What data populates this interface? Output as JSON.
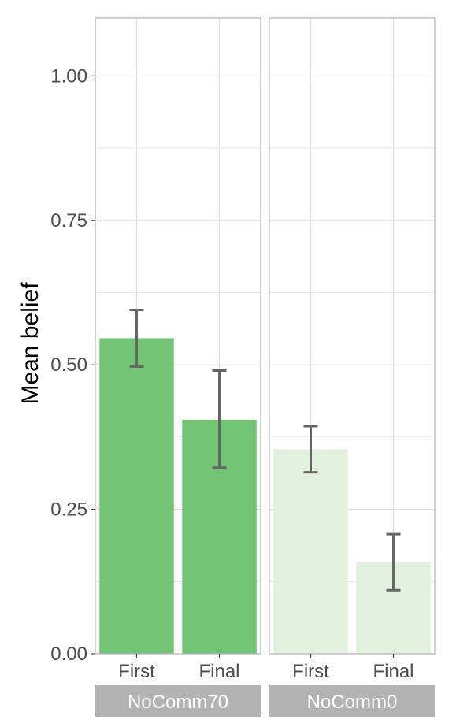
{
  "chart_data": {
    "type": "bar",
    "ylabel": "Mean belief",
    "xlabel": "",
    "ylim": [
      0,
      1.1
    ],
    "y_ticks": [
      {
        "value": 0,
        "label": "0.00"
      },
      {
        "value": 0.25,
        "label": "0.25"
      },
      {
        "value": 0.5,
        "label": "0.50"
      },
      {
        "value": 0.75,
        "label": "0.75"
      },
      {
        "value": 1,
        "label": "1.00"
      }
    ],
    "grid": true,
    "legend": "none",
    "categories": [
      "First",
      "Final"
    ],
    "panels": [
      {
        "name": "NoComm70",
        "color": "#74c476",
        "values": [
          0.546,
          0.405
        ],
        "error_low": [
          0.497,
          0.322
        ],
        "error_high": [
          0.595,
          0.49
        ]
      },
      {
        "name": "NoComm0",
        "color": "#e2f1de",
        "values": [
          0.354,
          0.158
        ],
        "error_low": [
          0.314,
          0.11
        ],
        "error_high": [
          0.394,
          0.207
        ]
      }
    ],
    "colors": {
      "errorbar": "#666666",
      "grid": "#dedede",
      "panel_border": "#b3b3b3",
      "strip_fill": "#b3b3b3"
    }
  }
}
